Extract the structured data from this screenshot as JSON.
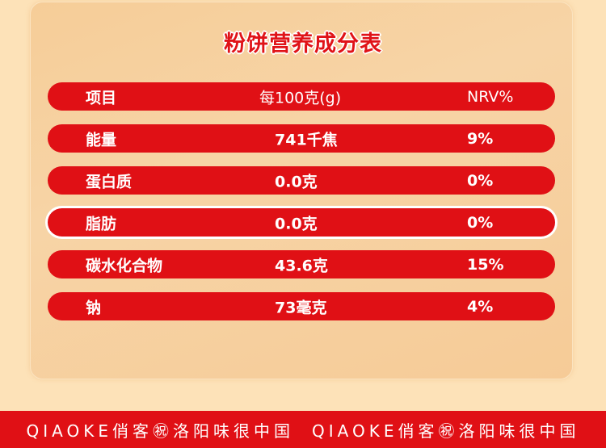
{
  "title": "粉饼营养成分表",
  "header": {
    "item": "项目",
    "per100": "每100克(g)",
    "nrv": "NRV%"
  },
  "rows": [
    {
      "item": "能量",
      "value": "741千焦",
      "nrv": "9%"
    },
    {
      "item": "蛋白质",
      "value": "0.0克",
      "nrv": "0%"
    },
    {
      "item": "脂肪",
      "value": "0.0克",
      "nrv": "0%",
      "highlighted": true
    },
    {
      "item": "碳水化合物",
      "value": "43.6克",
      "nrv": "15%"
    },
    {
      "item": "钠",
      "value": "73毫克",
      "nrv": "4%"
    }
  ],
  "footer": {
    "text1": "QIAOKE俏客㊗洛阳味很中国",
    "text2": "QIAOKE俏客㊗洛阳味很中国"
  },
  "colors": {
    "red": "#e01015",
    "background": "#fde2b8",
    "card": "#f6cd98"
  }
}
